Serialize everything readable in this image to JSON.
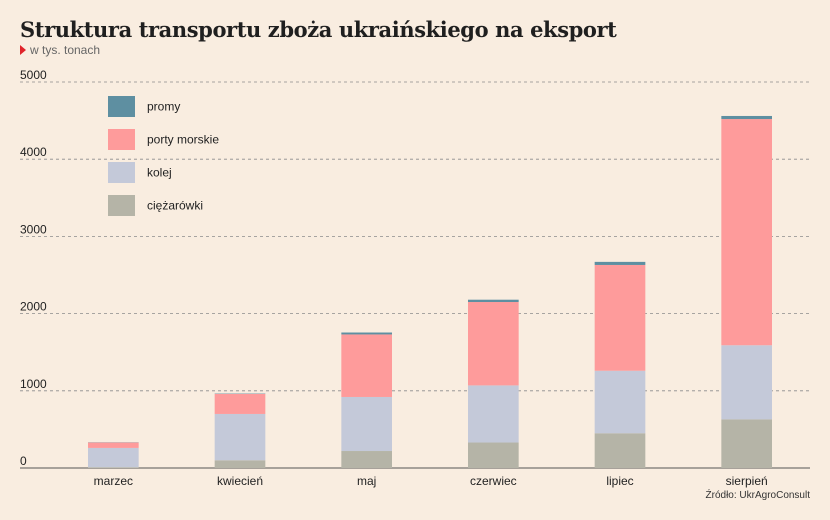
{
  "header": {
    "title": "Struktura transportu zboża  ukraińskiego na eksport",
    "subtitle": "w tys. tonach"
  },
  "footer": {
    "source": "Źródło: UkrAgroConsult"
  },
  "chart_data": {
    "type": "bar",
    "stacked": true,
    "title": "Struktura transportu zboża  ukraińskiego na eksport",
    "subtitle": "w tys. tonach",
    "categories": [
      "marzec",
      "kwiecień",
      "maj",
      "czerwiec",
      "lipiec",
      "sierpień"
    ],
    "series": [
      {
        "name": "ciężarówki",
        "color": "#b5b4a7",
        "values": [
          10,
          100,
          220,
          330,
          450,
          630
        ]
      },
      {
        "name": "kolej",
        "color": "#c4c9d9",
        "values": [
          250,
          600,
          700,
          740,
          810,
          960
        ]
      },
      {
        "name": "porty morskie",
        "color": "#fe9b9b",
        "values": [
          70,
          260,
          810,
          1080,
          1370,
          2930
        ]
      },
      {
        "name": "promy",
        "color": "#5e8fa1",
        "values": [
          3,
          5,
          25,
          30,
          40,
          40
        ]
      }
    ],
    "legend_order": [
      "promy",
      "porty morskie",
      "kolej",
      "ciężarówki"
    ],
    "legend_position": "top-left",
    "ylim": [
      0,
      5000
    ],
    "yticks": [
      0,
      1000,
      2000,
      3000,
      4000,
      5000
    ],
    "grid": true,
    "xlabel": "",
    "ylabel": ""
  }
}
